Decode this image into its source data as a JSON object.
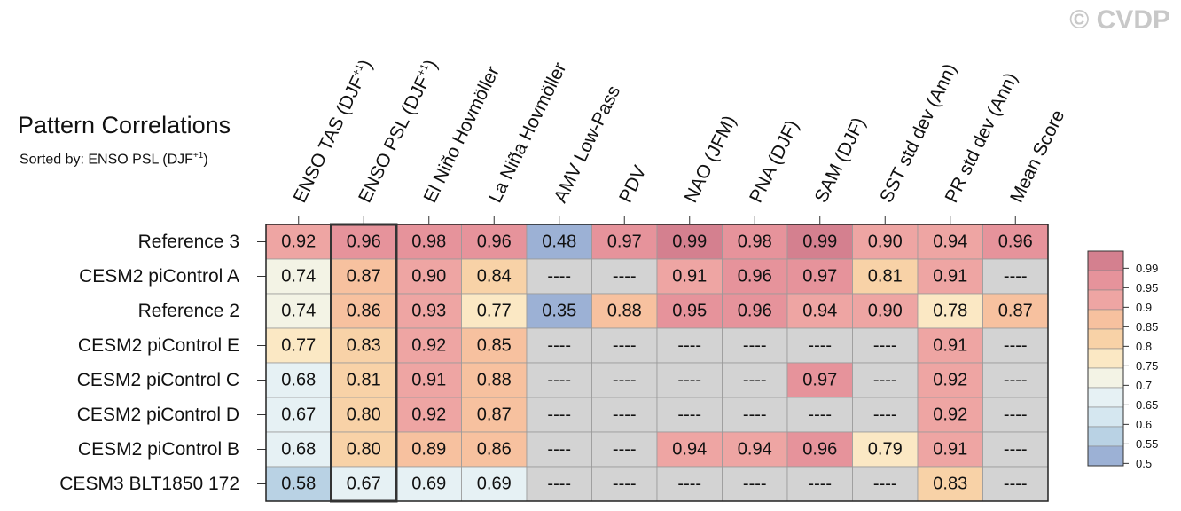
{
  "copyright": "© CVDP",
  "chart_data": {
    "type": "heatmap",
    "title": "Pattern Correlations",
    "subtitle_prefix": "Sorted by: ENSO PSL (DJF",
    "subtitle_sup": "+1",
    "subtitle_suffix": ")",
    "columns": [
      {
        "text": "ENSO TAS (DJF",
        "sup": "+1",
        "suffix": ")"
      },
      {
        "text": "ENSO PSL (DJF",
        "sup": "+1",
        "suffix": ")"
      },
      {
        "text": "El Niño Hovmöller",
        "sup": "",
        "suffix": ""
      },
      {
        "text": "La Niña Hovmöller",
        "sup": "",
        "suffix": ""
      },
      {
        "text": "AMV Low-Pass",
        "sup": "",
        "suffix": ""
      },
      {
        "text": "PDV",
        "sup": "",
        "suffix": ""
      },
      {
        "text": "NAO (JFM)",
        "sup": "",
        "suffix": ""
      },
      {
        "text": "PNA (DJF)",
        "sup": "",
        "suffix": ""
      },
      {
        "text": "SAM (DJF)",
        "sup": "",
        "suffix": ""
      },
      {
        "text": "SST std dev (Ann)",
        "sup": "",
        "suffix": ""
      },
      {
        "text": "PR std dev (Ann)",
        "sup": "",
        "suffix": ""
      },
      {
        "text": "Mean Score",
        "sup": "",
        "suffix": ""
      }
    ],
    "rows": [
      {
        "name": "Reference 3",
        "values": [
          0.92,
          0.96,
          0.98,
          0.96,
          0.48,
          0.97,
          0.99,
          0.98,
          0.99,
          0.9,
          0.94,
          0.96
        ]
      },
      {
        "name": "CESM2 piControl A",
        "values": [
          0.74,
          0.87,
          0.9,
          0.84,
          null,
          null,
          0.91,
          0.96,
          0.97,
          0.81,
          0.91,
          null
        ]
      },
      {
        "name": "Reference 2",
        "values": [
          0.74,
          0.86,
          0.93,
          0.77,
          0.35,
          0.88,
          0.95,
          0.96,
          0.94,
          0.9,
          0.78,
          0.87
        ]
      },
      {
        "name": "CESM2 piControl E",
        "values": [
          0.77,
          0.83,
          0.92,
          0.85,
          null,
          null,
          null,
          null,
          null,
          null,
          0.91,
          null
        ]
      },
      {
        "name": "CESM2 piControl C",
        "values": [
          0.68,
          0.81,
          0.91,
          0.88,
          null,
          null,
          null,
          null,
          0.97,
          null,
          0.92,
          null
        ]
      },
      {
        "name": "CESM2 piControl D",
        "values": [
          0.67,
          0.8,
          0.92,
          0.87,
          null,
          null,
          null,
          null,
          null,
          null,
          0.92,
          null
        ]
      },
      {
        "name": "CESM2 piControl B",
        "values": [
          0.68,
          0.8,
          0.89,
          0.86,
          null,
          null,
          0.94,
          0.94,
          0.96,
          0.79,
          0.91,
          null
        ]
      },
      {
        "name": "CESM3 BLT1850 172",
        "values": [
          0.58,
          0.67,
          0.69,
          0.69,
          null,
          null,
          null,
          null,
          null,
          null,
          0.83,
          null
        ]
      }
    ],
    "missing_text": "----",
    "missing_color": "#d3d3d3",
    "highlighted_column": 1,
    "colorbar": {
      "ticks": [
        "0.99",
        "0.95",
        "0.9",
        "0.85",
        "0.8",
        "0.75",
        "0.7",
        "0.65",
        "0.6",
        "0.55",
        "0.5"
      ],
      "colors": [
        "#d4808f",
        "#e6939b",
        "#eea5a3",
        "#f7c19f",
        "#f8d2a7",
        "#fbe8c4",
        "#f3f3e5",
        "#e6f1f4",
        "#d5e7f0",
        "#b9d2e4",
        "#9cb1d5"
      ]
    }
  }
}
